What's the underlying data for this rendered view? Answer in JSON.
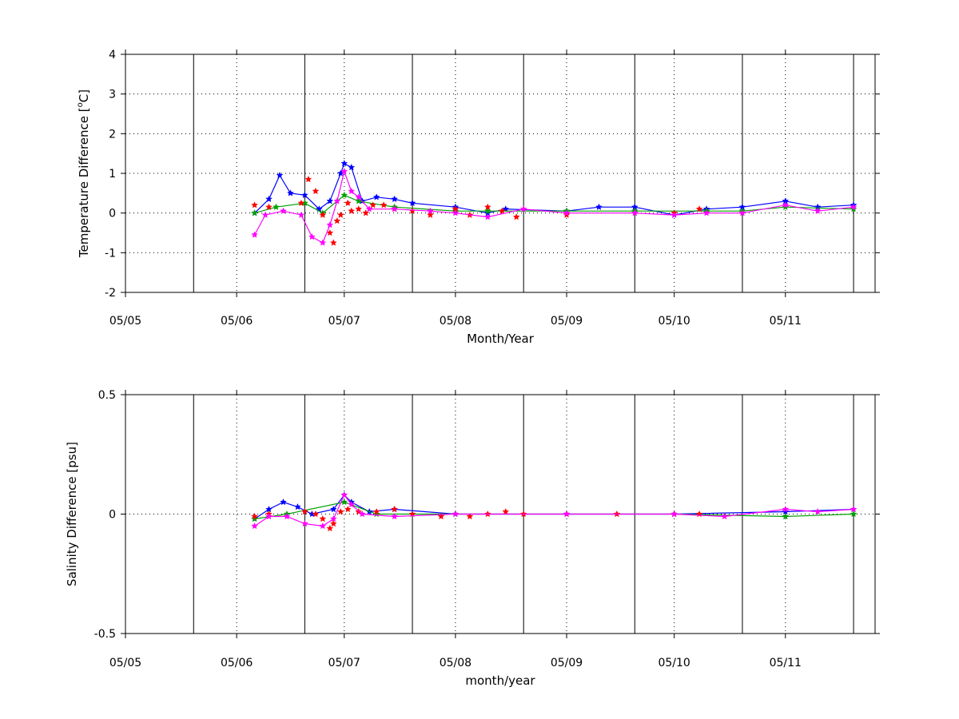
{
  "figure": {
    "background": "#ffffff",
    "series_colors": {
      "blue": "#0000ff",
      "green": "#00a000",
      "red": "#ff0000",
      "magenta": "#ff00ff"
    }
  },
  "chart_data": [
    {
      "type": "line",
      "panel": "top",
      "xlabel": "Month/Year",
      "ylabel": "Temperature Difference [°C]",
      "ylabel_parts": {
        "before": "Temperature Difference [",
        "sup": "o",
        "after": "C]"
      },
      "xlim": [
        "2005-05-01",
        "2005-11-26"
      ],
      "ylim": [
        -2,
        4
      ],
      "y_ticks": [
        -2,
        -1,
        0,
        1,
        2,
        3,
        4
      ],
      "x_tick_labels": [
        "05/05",
        "05/06",
        "05/07",
        "05/08",
        "05/09",
        "05/10",
        "05/11"
      ],
      "x_tick_dates": [
        "2005-05-01",
        "2005-06-01",
        "2005-07-01",
        "2005-08-01",
        "2005-09-01",
        "2005-10-01",
        "2005-11-01"
      ],
      "vertical_lines": [
        "2005-05-20",
        "2005-06-20",
        "2005-07-20",
        "2005-08-20",
        "2005-09-20",
        "2005-10-20",
        "2005-11-20"
      ],
      "grid": "dotted",
      "series": [
        {
          "color": "blue",
          "values": [
            [
              "2005-06-06",
              0.0
            ],
            [
              "2005-06-10",
              0.35
            ],
            [
              "2005-06-13",
              0.95
            ],
            [
              "2005-06-16",
              0.5
            ],
            [
              "2005-06-20",
              0.45
            ],
            [
              "2005-06-24",
              0.1
            ],
            [
              "2005-06-27",
              0.3
            ],
            [
              "2005-06-30",
              1.0
            ],
            [
              "2005-07-01",
              1.25
            ],
            [
              "2005-07-03",
              1.15
            ],
            [
              "2005-07-06",
              0.3
            ],
            [
              "2005-07-10",
              0.4
            ],
            [
              "2005-07-15",
              0.35
            ],
            [
              "2005-07-20",
              0.25
            ],
            [
              "2005-08-01",
              0.15
            ],
            [
              "2005-08-10",
              0.0
            ],
            [
              "2005-08-15",
              0.1
            ],
            [
              "2005-09-01",
              0.05
            ],
            [
              "2005-09-10",
              0.15
            ],
            [
              "2005-09-20",
              0.15
            ],
            [
              "2005-10-01",
              -0.05
            ],
            [
              "2005-10-10",
              0.1
            ],
            [
              "2005-10-20",
              0.15
            ],
            [
              "2005-11-01",
              0.3
            ],
            [
              "2005-11-10",
              0.15
            ],
            [
              "2005-11-20",
              0.2
            ]
          ]
        },
        {
          "color": "green",
          "values": [
            [
              "2005-06-06",
              0.0
            ],
            [
              "2005-06-12",
              0.15
            ],
            [
              "2005-06-20",
              0.25
            ],
            [
              "2005-06-25",
              0.0
            ],
            [
              "2005-07-01",
              0.45
            ],
            [
              "2005-07-05",
              0.3
            ],
            [
              "2005-07-15",
              0.15
            ],
            [
              "2005-08-01",
              0.05
            ],
            [
              "2005-08-10",
              0.05
            ],
            [
              "2005-09-01",
              0.05
            ],
            [
              "2005-09-20",
              0.05
            ],
            [
              "2005-10-10",
              0.05
            ],
            [
              "2005-10-20",
              0.05
            ],
            [
              "2005-11-01",
              0.15
            ],
            [
              "2005-11-20",
              0.1
            ]
          ]
        },
        {
          "color": "red",
          "markers_only": true,
          "values": [
            [
              "2005-06-06",
              0.2
            ],
            [
              "2005-06-10",
              0.15
            ],
            [
              "2005-06-19",
              0.25
            ],
            [
              "2005-06-21",
              0.85
            ],
            [
              "2005-06-23",
              0.55
            ],
            [
              "2005-06-25",
              -0.05
            ],
            [
              "2005-06-27",
              -0.5
            ],
            [
              "2005-06-28",
              -0.75
            ],
            [
              "2005-06-29",
              -0.2
            ],
            [
              "2005-06-30",
              -0.05
            ],
            [
              "2005-07-02",
              0.25
            ],
            [
              "2005-07-03",
              0.05
            ],
            [
              "2005-07-05",
              0.1
            ],
            [
              "2005-07-07",
              0.0
            ],
            [
              "2005-07-09",
              0.2
            ],
            [
              "2005-07-12",
              0.2
            ],
            [
              "2005-07-15",
              0.1
            ],
            [
              "2005-07-20",
              0.05
            ],
            [
              "2005-07-25",
              -0.05
            ],
            [
              "2005-08-01",
              0.1
            ],
            [
              "2005-08-05",
              -0.05
            ],
            [
              "2005-08-10",
              0.15
            ],
            [
              "2005-08-14",
              0.05
            ],
            [
              "2005-08-18",
              -0.1
            ],
            [
              "2005-09-01",
              -0.05
            ],
            [
              "2005-10-01",
              0.0
            ],
            [
              "2005-10-08",
              0.1
            ]
          ]
        },
        {
          "color": "magenta",
          "values": [
            [
              "2005-06-06",
              -0.55
            ],
            [
              "2005-06-09",
              -0.05
            ],
            [
              "2005-06-14",
              0.05
            ],
            [
              "2005-06-19",
              -0.05
            ],
            [
              "2005-06-22",
              -0.6
            ],
            [
              "2005-06-25",
              -0.75
            ],
            [
              "2005-06-27",
              -0.3
            ],
            [
              "2005-06-29",
              0.3
            ],
            [
              "2005-07-01",
              1.05
            ],
            [
              "2005-07-03",
              0.55
            ],
            [
              "2005-07-05",
              0.4
            ],
            [
              "2005-07-08",
              0.1
            ],
            [
              "2005-07-15",
              0.1
            ],
            [
              "2005-07-25",
              0.05
            ],
            [
              "2005-08-01",
              0.0
            ],
            [
              "2005-08-10",
              -0.1
            ],
            [
              "2005-08-20",
              0.1
            ],
            [
              "2005-09-01",
              0.0
            ],
            [
              "2005-09-20",
              0.0
            ],
            [
              "2005-10-01",
              -0.05
            ],
            [
              "2005-10-10",
              0.0
            ],
            [
              "2005-10-20",
              0.0
            ],
            [
              "2005-11-01",
              0.2
            ],
            [
              "2005-11-10",
              0.05
            ],
            [
              "2005-11-20",
              0.15
            ]
          ]
        }
      ]
    },
    {
      "type": "line",
      "panel": "bottom",
      "xlabel": "month/year",
      "ylabel": "Salinity Difference [psu]",
      "xlim": [
        "2005-05-01",
        "2005-11-26"
      ],
      "ylim": [
        -0.5,
        0.5
      ],
      "y_ticks": [
        -0.5,
        0,
        0.5
      ],
      "x_tick_labels": [
        "05/05",
        "05/06",
        "05/07",
        "05/08",
        "05/09",
        "05/10",
        "05/11"
      ],
      "x_tick_dates": [
        "2005-05-01",
        "2005-06-01",
        "2005-07-01",
        "2005-08-01",
        "2005-09-01",
        "2005-10-01",
        "2005-11-01"
      ],
      "vertical_lines": [
        "2005-05-20",
        "2005-06-20",
        "2005-07-20",
        "2005-08-20",
        "2005-09-20",
        "2005-10-20",
        "2005-11-20"
      ],
      "grid": "dotted",
      "series": [
        {
          "color": "blue",
          "values": [
            [
              "2005-06-06",
              -0.02
            ],
            [
              "2005-06-10",
              0.02
            ],
            [
              "2005-06-14",
              0.05
            ],
            [
              "2005-06-18",
              0.03
            ],
            [
              "2005-06-22",
              0.0
            ],
            [
              "2005-06-28",
              0.02
            ],
            [
              "2005-07-01",
              0.08
            ],
            [
              "2005-07-03",
              0.05
            ],
            [
              "2005-07-08",
              0.01
            ],
            [
              "2005-07-15",
              0.02
            ],
            [
              "2005-08-01",
              0.0
            ],
            [
              "2005-09-01",
              0.0
            ],
            [
              "2005-10-01",
              0.0
            ],
            [
              "2005-11-01",
              0.01
            ],
            [
              "2005-11-20",
              0.02
            ]
          ]
        },
        {
          "color": "green",
          "values": [
            [
              "2005-06-06",
              -0.02
            ],
            [
              "2005-06-15",
              0.0
            ],
            [
              "2005-07-01",
              0.05
            ],
            [
              "2005-07-10",
              0.0
            ],
            [
              "2005-08-01",
              0.0
            ],
            [
              "2005-09-01",
              0.0
            ],
            [
              "2005-10-01",
              0.0
            ],
            [
              "2005-11-01",
              -0.01
            ],
            [
              "2005-11-20",
              0.0
            ]
          ]
        },
        {
          "color": "red",
          "markers_only": true,
          "values": [
            [
              "2005-06-06",
              -0.01
            ],
            [
              "2005-06-10",
              0.0
            ],
            [
              "2005-06-20",
              0.01
            ],
            [
              "2005-06-23",
              0.0
            ],
            [
              "2005-06-25",
              -0.02
            ],
            [
              "2005-06-27",
              -0.06
            ],
            [
              "2005-06-28",
              -0.04
            ],
            [
              "2005-06-30",
              0.01
            ],
            [
              "2005-07-02",
              0.02
            ],
            [
              "2005-07-05",
              0.01
            ],
            [
              "2005-07-10",
              0.01
            ],
            [
              "2005-07-15",
              0.02
            ],
            [
              "2005-07-20",
              0.0
            ],
            [
              "2005-07-28",
              -0.01
            ],
            [
              "2005-08-05",
              -0.01
            ],
            [
              "2005-08-10",
              0.0
            ],
            [
              "2005-08-15",
              0.01
            ],
            [
              "2005-08-20",
              0.0
            ],
            [
              "2005-09-01",
              0.0
            ],
            [
              "2005-09-15",
              0.0
            ],
            [
              "2005-10-01",
              0.0
            ],
            [
              "2005-10-08",
              0.0
            ]
          ]
        },
        {
          "color": "magenta",
          "values": [
            [
              "2005-06-06",
              -0.05
            ],
            [
              "2005-06-10",
              -0.01
            ],
            [
              "2005-06-15",
              -0.01
            ],
            [
              "2005-06-20",
              -0.04
            ],
            [
              "2005-06-25",
              -0.05
            ],
            [
              "2005-06-28",
              -0.02
            ],
            [
              "2005-07-01",
              0.08
            ],
            [
              "2005-07-03",
              0.04
            ],
            [
              "2005-07-06",
              0.0
            ],
            [
              "2005-07-15",
              -0.01
            ],
            [
              "2005-08-01",
              0.0
            ],
            [
              "2005-09-01",
              0.0
            ],
            [
              "2005-10-01",
              0.0
            ],
            [
              "2005-10-15",
              -0.01
            ],
            [
              "2005-11-01",
              0.02
            ],
            [
              "2005-11-10",
              0.01
            ],
            [
              "2005-11-20",
              0.02
            ]
          ]
        }
      ]
    }
  ]
}
